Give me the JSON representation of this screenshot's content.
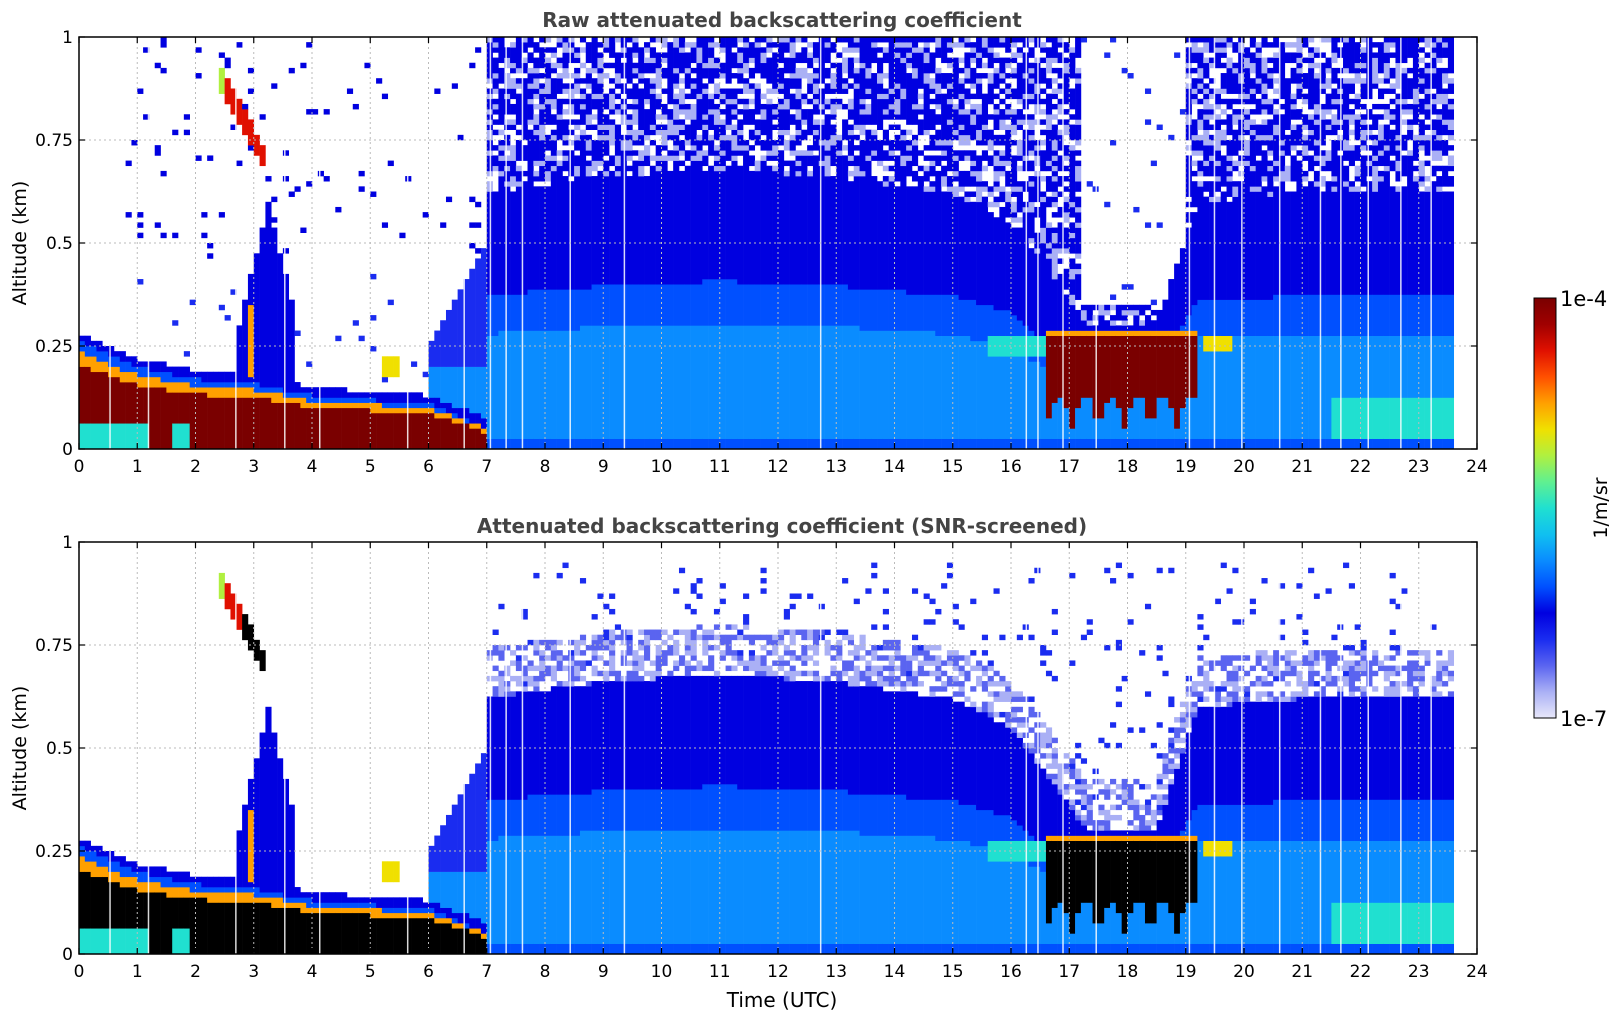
{
  "chart_data": [
    {
      "type": "heatmap",
      "title": "Raw attenuated backscattering coefficient",
      "xlabel": "",
      "ylabel": "Altitude (km)",
      "xlim": [
        0,
        24
      ],
      "ylim": [
        0,
        1
      ],
      "x_ticks": [
        "0",
        "1",
        "2",
        "3",
        "4",
        "5",
        "6",
        "7",
        "8",
        "9",
        "10",
        "11",
        "12",
        "13",
        "14",
        "15",
        "16",
        "17",
        "18",
        "19",
        "20",
        "21",
        "22",
        "23",
        "24"
      ],
      "y_ticks": [
        "0",
        "0.25",
        "0.5",
        "0.75",
        "1"
      ],
      "grid": true,
      "data_end_time": 23.62,
      "layers": {
        "boundary_layer_top_km": [
          [
            0,
            0.26
          ],
          [
            1,
            0.2
          ],
          [
            2,
            0.17
          ],
          [
            3,
            0.16
          ],
          [
            4,
            0.13
          ],
          [
            5,
            0.12
          ],
          [
            6,
            0.11
          ],
          [
            7,
            0.05
          ]
        ],
        "elevated_plume": {
          "time_start": 2.4,
          "time_end": 3.2,
          "alt_start_km": 0.92,
          "alt_end_km": 0.7
        },
        "cloud_layer": {
          "time_start": 16.6,
          "time_end": 19.2,
          "alt_km": [
            0.05,
            0.3
          ]
        },
        "aerosol_layer_top_km_day": 0.65
      }
    },
    {
      "type": "heatmap",
      "title": "Attenuated backscattering coefficient (SNR-screened)",
      "xlabel": "Time (UTC)",
      "ylabel": "Altitude (km)",
      "xlim": [
        0,
        24
      ],
      "ylim": [
        0,
        1
      ],
      "x_ticks": [
        "0",
        "1",
        "2",
        "3",
        "4",
        "5",
        "6",
        "7",
        "8",
        "9",
        "10",
        "11",
        "12",
        "13",
        "14",
        "15",
        "16",
        "17",
        "18",
        "19",
        "20",
        "21",
        "22",
        "23",
        "24"
      ],
      "y_ticks": [
        "0",
        "0.25",
        "0.5",
        "0.75",
        "1"
      ],
      "grid": true,
      "data_end_time": 23.62,
      "screened": true
    }
  ],
  "colorbar": {
    "label": "1/m/sr",
    "max_label": "1e-4",
    "min_label": "1e-7",
    "scale": "log",
    "colors": [
      "#e8e8fa",
      "#aab0f5",
      "#5a64f0",
      "#1a2cf0",
      "#0000e0",
      "#0050ff",
      "#0a8cff",
      "#10c0f0",
      "#20e0d0",
      "#60f090",
      "#b0f040",
      "#f0e000",
      "#ffa000",
      "#ff5000",
      "#e01000",
      "#a00000",
      "#7a0000"
    ]
  }
}
